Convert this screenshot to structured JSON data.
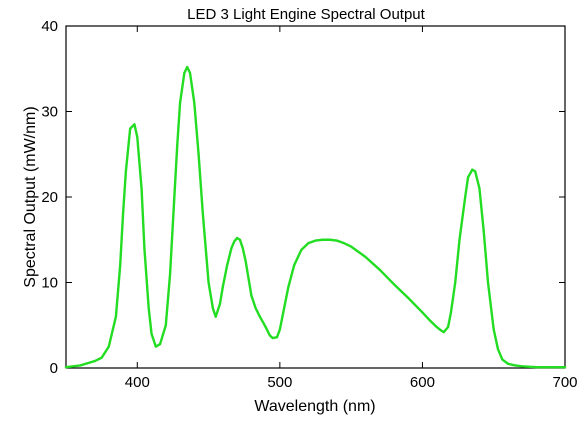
{
  "chart_data": {
    "type": "line",
    "title": "LED 3 Light Engine Spectral Output",
    "xlabel": "Wavelength (nm)",
    "ylabel": "Spectral Output (mW/nm)",
    "xlim": [
      350,
      700
    ],
    "ylim": [
      0,
      40
    ],
    "xticks": [
      400,
      500,
      600,
      700
    ],
    "yticks": [
      0,
      10,
      20,
      30,
      40
    ],
    "grid": false,
    "legend": "none",
    "series": [
      {
        "color": "#22dd22",
        "x": [
          350,
          360,
          370,
          375,
          380,
          385,
          388,
          390,
          392,
          395,
          398,
          400,
          403,
          405,
          408,
          410,
          413,
          416,
          420,
          423,
          426,
          428,
          430,
          433,
          435,
          437,
          440,
          443,
          446,
          450,
          453,
          455,
          458,
          460,
          463,
          466,
          468,
          470,
          472,
          474,
          476,
          478,
          480,
          483,
          486,
          490,
          493,
          495,
          498,
          500,
          503,
          506,
          510,
          515,
          520,
          525,
          530,
          535,
          540,
          545,
          550,
          555,
          560,
          570,
          580,
          590,
          600,
          605,
          610,
          613,
          615,
          618,
          620,
          623,
          626,
          630,
          632,
          635,
          637,
          640,
          643,
          646,
          650,
          653,
          656,
          660,
          665,
          670,
          680,
          690,
          700
        ],
        "values": [
          0.1,
          0.3,
          0.8,
          1.2,
          2.5,
          6,
          12,
          18,
          23,
          28,
          28.5,
          27,
          21,
          14,
          7,
          4,
          2.5,
          2.8,
          5,
          11,
          20,
          26,
          31,
          34.5,
          35.2,
          34.5,
          31,
          25,
          18,
          10,
          7,
          6,
          7.5,
          9.5,
          12,
          14,
          14.8,
          15.2,
          15,
          14,
          12.5,
          10.5,
          8.5,
          7,
          6,
          4.8,
          3.8,
          3.5,
          3.6,
          4.5,
          7,
          9.5,
          12,
          13.8,
          14.6,
          14.9,
          15,
          15,
          14.9,
          14.6,
          14.2,
          13.6,
          13,
          11.5,
          9.8,
          8.2,
          6.5,
          5.6,
          4.8,
          4.4,
          4.2,
          4.8,
          6.5,
          10,
          15,
          20,
          22.3,
          23.2,
          23,
          21,
          16,
          10,
          4.5,
          2.2,
          1,
          0.5,
          0.3,
          0.2,
          0.1,
          0.1,
          0.1
        ]
      }
    ]
  }
}
